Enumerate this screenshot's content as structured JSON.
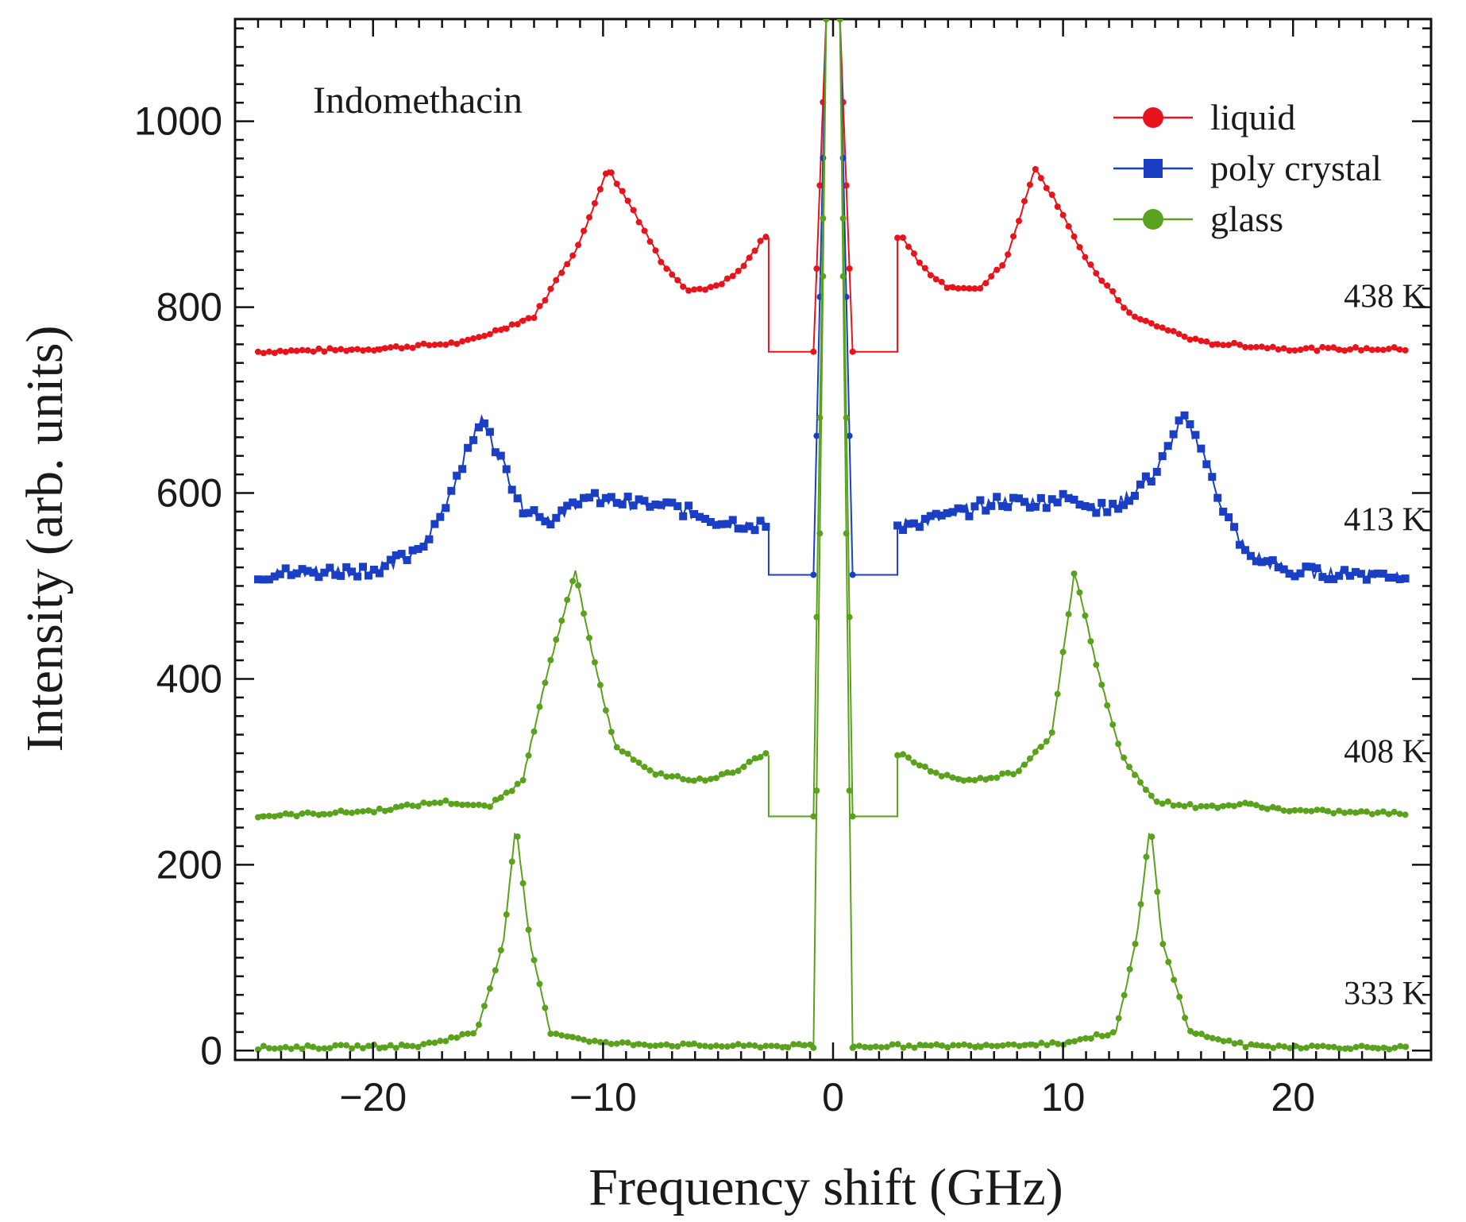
{
  "chart_data": {
    "type": "scatter",
    "title": "",
    "sample_label": "Indomethacin",
    "xlabel": "Frequency shift (GHz)",
    "ylabel": "Intensity (arb. units)",
    "xlim": [
      -26,
      26
    ],
    "ylim": [
      -10,
      1110
    ],
    "x_ticks": [
      -20,
      -10,
      0,
      10,
      20
    ],
    "x_tick_labels": [
      "−20",
      "−10",
      "0",
      "10",
      "20"
    ],
    "y_ticks": [
      0,
      200,
      400,
      600,
      800,
      1000
    ],
    "y_tick_labels": [
      "0",
      "200",
      "400",
      "600",
      "800",
      "1000"
    ],
    "grid": false,
    "legend": {
      "position": "top-right",
      "entries": [
        {
          "label": "liquid",
          "color": "#e8141b",
          "marker": "circle"
        },
        {
          "label": "poly crystal",
          "color": "#1a3fc4",
          "marker": "square"
        },
        {
          "label": "glass",
          "color": "#5aa21e",
          "marker": "circle"
        }
      ]
    },
    "series": [
      {
        "name": "liquid",
        "temperature": "438 K",
        "color": "#e8141b",
        "baseline": 752,
        "cut": 2.8,
        "points": [
          [
            -25,
            752
          ],
          [
            -20,
            755
          ],
          [
            -16,
            762
          ],
          [
            -13,
            790
          ],
          [
            -11,
            870
          ],
          [
            -9.8,
            950
          ],
          [
            -8.8,
            910
          ],
          [
            -7.5,
            850
          ],
          [
            -6.3,
            818
          ],
          [
            -5,
            822
          ],
          [
            -4,
            840
          ],
          [
            -3,
            875
          ],
          [
            3,
            875
          ],
          [
            4,
            840
          ],
          [
            5,
            822
          ],
          [
            6.3,
            818
          ],
          [
            7.5,
            850
          ],
          [
            8.8,
            950
          ],
          [
            10,
            900
          ],
          [
            11,
            850
          ],
          [
            13,
            790
          ],
          [
            16,
            762
          ],
          [
            20,
            755
          ],
          [
            25,
            755
          ]
        ]
      },
      {
        "name": "poly crystal",
        "temperature": "413 K",
        "color": "#1a3fc4",
        "baseline": 512,
        "cut": 2.8,
        "points": [
          [
            -25,
            512
          ],
          [
            -20,
            518
          ],
          [
            -18,
            535
          ],
          [
            -17,
            580
          ],
          [
            -16,
            640
          ],
          [
            -15.3,
            680
          ],
          [
            -14.5,
            640
          ],
          [
            -13.5,
            585
          ],
          [
            -12,
            570
          ],
          [
            -11,
            595
          ],
          [
            -9,
            590
          ],
          [
            -7,
            585
          ],
          [
            -5,
            570
          ],
          [
            -3,
            565
          ],
          [
            3,
            565
          ],
          [
            5,
            575
          ],
          [
            7,
            590
          ],
          [
            9,
            590
          ],
          [
            10.5,
            595
          ],
          [
            12,
            580
          ],
          [
            14,
            620
          ],
          [
            15.2,
            680
          ],
          [
            16,
            650
          ],
          [
            17,
            580
          ],
          [
            18,
            535
          ],
          [
            20,
            515
          ],
          [
            25,
            512
          ]
        ]
      },
      {
        "name": "glass",
        "temperature": "408 K",
        "color": "#5aa21e",
        "baseline": 252,
        "cut": 2.8,
        "points": [
          [
            -25,
            252
          ],
          [
            -20,
            258
          ],
          [
            -17,
            268
          ],
          [
            -15,
            262
          ],
          [
            -13.5,
            290
          ],
          [
            -12.5,
            400
          ],
          [
            -11.2,
            515
          ],
          [
            -10.5,
            430
          ],
          [
            -9.5,
            330
          ],
          [
            -8,
            300
          ],
          [
            -6,
            290
          ],
          [
            -4.5,
            298
          ],
          [
            -3,
            318
          ],
          [
            3,
            318
          ],
          [
            4.5,
            298
          ],
          [
            6,
            290
          ],
          [
            8,
            300
          ],
          [
            9.5,
            340
          ],
          [
            10.5,
            515
          ],
          [
            11.5,
            410
          ],
          [
            12.5,
            320
          ],
          [
            14,
            268
          ],
          [
            16,
            262
          ],
          [
            18,
            265
          ],
          [
            20,
            258
          ],
          [
            25,
            255
          ]
        ]
      },
      {
        "name": "glass",
        "temperature": "333 K",
        "color": "#5aa21e",
        "baseline": 3,
        "cut": 0.9,
        "points": [
          [
            -25,
            3
          ],
          [
            -18,
            5
          ],
          [
            -15.5,
            20
          ],
          [
            -14.3,
            120
          ],
          [
            -13.8,
            245
          ],
          [
            -13.2,
            120
          ],
          [
            -12.3,
            20
          ],
          [
            -10,
            8
          ],
          [
            -5,
            5
          ],
          [
            -1,
            5
          ],
          [
            1,
            5
          ],
          [
            5,
            5
          ],
          [
            10,
            8
          ],
          [
            12.3,
            20
          ],
          [
            13.2,
            120
          ],
          [
            13.8,
            245
          ],
          [
            14.3,
            120
          ],
          [
            15.5,
            20
          ],
          [
            18,
            5
          ],
          [
            25,
            3
          ]
        ]
      }
    ],
    "annotations": [
      "438 K",
      "413 K",
      "408 K",
      "333 K"
    ]
  }
}
